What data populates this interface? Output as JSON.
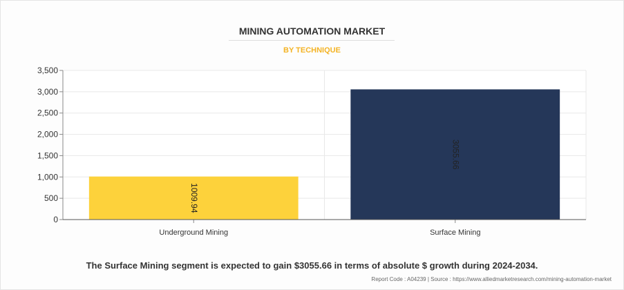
{
  "chart_data": {
    "type": "bar",
    "title": "MINING AUTOMATION MARKET",
    "subtitle": "BY TECHNIQUE",
    "categories": [
      "Underground Mining",
      "Surface Mining"
    ],
    "values": [
      1009.94,
      3055.66
    ],
    "value_labels": [
      "1009.94",
      "3055.66"
    ],
    "colors": [
      "#fdd23b",
      "#253759"
    ],
    "ylim": [
      0,
      3500
    ],
    "yticks": [
      0,
      500,
      1000,
      1500,
      2000,
      2500,
      3000,
      3500
    ],
    "ytick_labels": [
      "0",
      "500",
      "1,000",
      "1,500",
      "2,000",
      "2,500",
      "3,000",
      "3,500"
    ],
    "xlabel": "",
    "ylabel": "",
    "grid": true
  },
  "footnote": "The Surface Mining segment is expected to gain $3055.66 in terms of absolute $ growth during 2024-2034.",
  "source": "Report Code : A04239  |  Source : https://www.alliedmarketresearch.com/mining-automation-market"
}
